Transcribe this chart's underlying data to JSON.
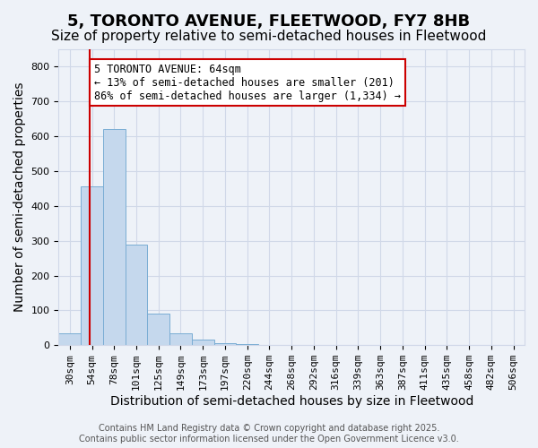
{
  "title": "5, TORONTO AVENUE, FLEETWOOD, FY7 8HB",
  "subtitle": "Size of property relative to semi-detached houses in Fleetwood",
  "xlabel": "Distribution of semi-detached houses by size in Fleetwood",
  "ylabel": "Number of semi-detached properties",
  "bin_labels": [
    "30sqm",
    "54sqm",
    "78sqm",
    "101sqm",
    "125sqm",
    "149sqm",
    "173sqm",
    "197sqm",
    "220sqm",
    "244sqm",
    "268sqm",
    "292sqm",
    "316sqm",
    "339sqm",
    "363sqm",
    "387sqm",
    "411sqm",
    "435sqm",
    "458sqm",
    "482sqm",
    "506sqm"
  ],
  "bar_values": [
    35,
    455,
    620,
    290,
    90,
    35,
    15,
    5,
    2,
    0,
    0,
    0,
    0,
    0,
    0,
    0,
    0,
    0,
    0,
    0,
    0
  ],
  "bar_color": "#c5d8ed",
  "bar_edge_color": "#7aadd4",
  "grid_color": "#d0d8e8",
  "background_color": "#eef2f8",
  "property_size": 64,
  "vline_color": "#cc0000",
  "annotation_text": "5 TORONTO AVENUE: 64sqm\n← 13% of semi-detached houses are smaller (201)\n86% of semi-detached houses are larger (1,334) →",
  "annotation_box_color": "#ffffff",
  "annotation_border_color": "#cc0000",
  "ylim": [
    0,
    850
  ],
  "yticks": [
    0,
    100,
    200,
    300,
    400,
    500,
    600,
    700,
    800
  ],
  "footer_text": "Contains HM Land Registry data © Crown copyright and database right 2025.\nContains public sector information licensed under the Open Government Licence v3.0.",
  "title_fontsize": 13,
  "subtitle_fontsize": 11,
  "axis_label_fontsize": 10,
  "tick_fontsize": 8,
  "annotation_fontsize": 8.5,
  "footer_fontsize": 7
}
